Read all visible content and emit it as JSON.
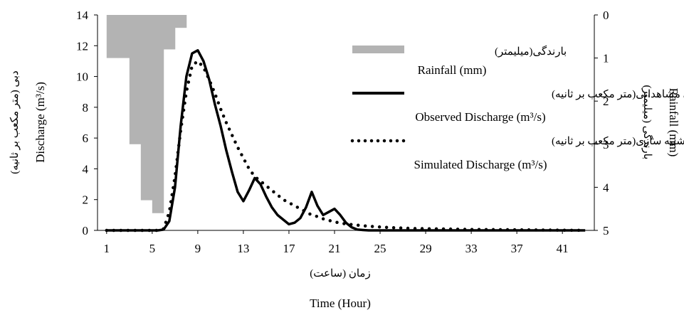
{
  "chart_data": {
    "type": "line",
    "xlabel_fa": "زمان (ساعت)",
    "xlabel_en": "Time (Hour)",
    "ylabel_left_fa": "دبی (متر مکعب بر ثانیه)",
    "ylabel_left_en": "Discharge (m³/s)",
    "ylabel_right_fa": "بارندگی (میلیمتر)",
    "ylabel_right_en": "Rainfall (mm)",
    "x_ticks": [
      "1",
      "5",
      "9",
      "13",
      "17",
      "21",
      "25",
      "29",
      "33",
      "37",
      "41"
    ],
    "y_left_ticks": [
      "0",
      "2",
      "4",
      "6",
      "8",
      "10",
      "12",
      "14"
    ],
    "y_right_ticks": [
      "0",
      "1",
      "2",
      "3",
      "4",
      "5"
    ],
    "xlim": [
      0.2,
      43.8
    ],
    "ylim_left": [
      0,
      14
    ],
    "ylim_right_inverted": [
      0,
      5
    ],
    "legend_position": "upper-right",
    "rainfall": {
      "legend_fa": "بارندگی(میلیمتر)",
      "legend_en": "Rainfall (mm)",
      "color": "#b3b3b3",
      "hours": [
        1.5,
        2.5,
        3.5,
        4.5,
        5.5,
        6.5,
        7.5
      ],
      "values_mm": [
        1.0,
        1.0,
        3.0,
        4.3,
        4.6,
        0.8,
        0.3
      ]
    },
    "series": [
      {
        "legend_fa": "دبی مشاهداتی(متر مکعب بر ثانیه)",
        "legend_en": "Observed Discharge (m³/s)",
        "style": "solid",
        "x": [
          1,
          2,
          3,
          4,
          5,
          5.5,
          6,
          6.5,
          7,
          7.5,
          8,
          8.5,
          9,
          9.5,
          10,
          10.5,
          11,
          11.5,
          12,
          12.5,
          13,
          13.5,
          14,
          14.5,
          15,
          15.5,
          16,
          16.5,
          17,
          17.5,
          18,
          18.5,
          19,
          19.5,
          20,
          20.5,
          21,
          21.5,
          22,
          22.5,
          23,
          24,
          25,
          27,
          30,
          35,
          40,
          43
        ],
        "y": [
          0,
          0,
          0,
          0,
          0,
          0,
          0.05,
          0.6,
          2.8,
          6.8,
          10.0,
          11.5,
          11.7,
          11.0,
          9.8,
          8.2,
          6.8,
          5.2,
          3.8,
          2.5,
          1.9,
          2.6,
          3.4,
          3.0,
          2.2,
          1.5,
          1.0,
          0.7,
          0.4,
          0.5,
          0.8,
          1.5,
          2.5,
          1.6,
          1.0,
          1.2,
          1.4,
          1.0,
          0.5,
          0.2,
          0.05,
          0,
          0,
          0,
          0,
          0,
          0,
          0
        ]
      },
      {
        "legend_fa": "دبی شبیه سازی(متر مکعب بر ثانیه)",
        "legend_en": "Simulated Discharge (m³/s)",
        "style": "dotted",
        "x": [
          1,
          2,
          3,
          4,
          5,
          5.5,
          6,
          6.5,
          7,
          7.5,
          8,
          8.5,
          9,
          9.5,
          10,
          10.5,
          11,
          11.5,
          12,
          12.5,
          13,
          13.5,
          14,
          14.5,
          15,
          15.5,
          16,
          16.5,
          17,
          17.5,
          18,
          18.5,
          19,
          19.5,
          20,
          20.5,
          21,
          21.5,
          22,
          22.5,
          23,
          23.5,
          24,
          25,
          26,
          27,
          28,
          30,
          33,
          37,
          40,
          43
        ],
        "y": [
          0,
          0,
          0,
          0,
          0,
          0,
          0.1,
          1.2,
          3.5,
          6.5,
          9.0,
          10.7,
          11.0,
          10.6,
          9.8,
          8.9,
          7.9,
          7.0,
          6.2,
          5.4,
          4.7,
          4.0,
          3.5,
          3.2,
          2.9,
          2.6,
          2.3,
          2.0,
          1.8,
          1.6,
          1.4,
          1.2,
          1.0,
          0.9,
          0.75,
          0.65,
          0.55,
          0.48,
          0.42,
          0.38,
          0.34,
          0.3,
          0.27,
          0.22,
          0.18,
          0.15,
          0.12,
          0.1,
          0.06,
          0.04,
          0.02,
          0
        ]
      }
    ]
  }
}
